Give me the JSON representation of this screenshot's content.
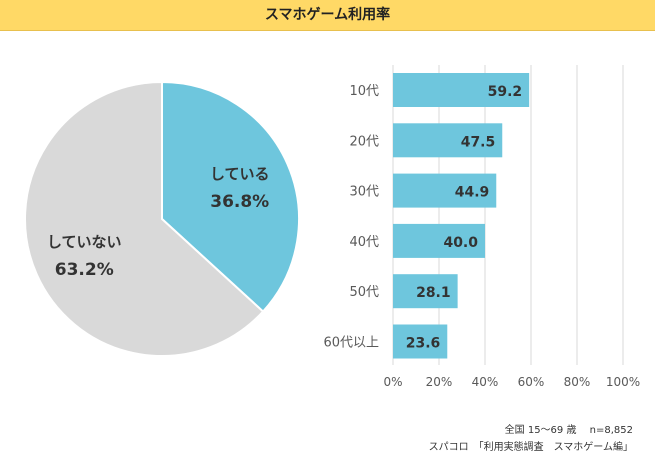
{
  "header": {
    "title": "スマホゲーム利用率"
  },
  "chart_data": [
    {
      "type": "pie",
      "title": "スマホゲーム利用率",
      "slices": [
        {
          "label": "している",
          "value": 36.8,
          "display": "36.8%",
          "color": "#6ec6dd"
        },
        {
          "label": "していない",
          "value": 63.2,
          "display": "63.2%",
          "color": "#d9d9d9"
        }
      ]
    },
    {
      "type": "bar",
      "orientation": "horizontal",
      "categories": [
        "10代",
        "20代",
        "30代",
        "40代",
        "50代",
        "60代以上"
      ],
      "values": [
        59.2,
        47.5,
        44.9,
        40.0,
        28.1,
        23.6
      ],
      "value_labels": [
        "59.2",
        "47.5",
        "44.9",
        "40.0",
        "28.1",
        "23.6"
      ],
      "xlim": [
        0,
        100
      ],
      "xticks": [
        "0%",
        "20%",
        "40%",
        "60%",
        "80%",
        "100%"
      ],
      "tick_values": [
        0,
        20,
        40,
        60,
        80,
        100
      ],
      "grid": true,
      "bar_color": "#6ec6dd"
    }
  ],
  "footer": {
    "line1": "全国 15～69 歳　 n=8,852",
    "line2": "スパコロ　「利用実態調査　スマホゲーム編」"
  }
}
